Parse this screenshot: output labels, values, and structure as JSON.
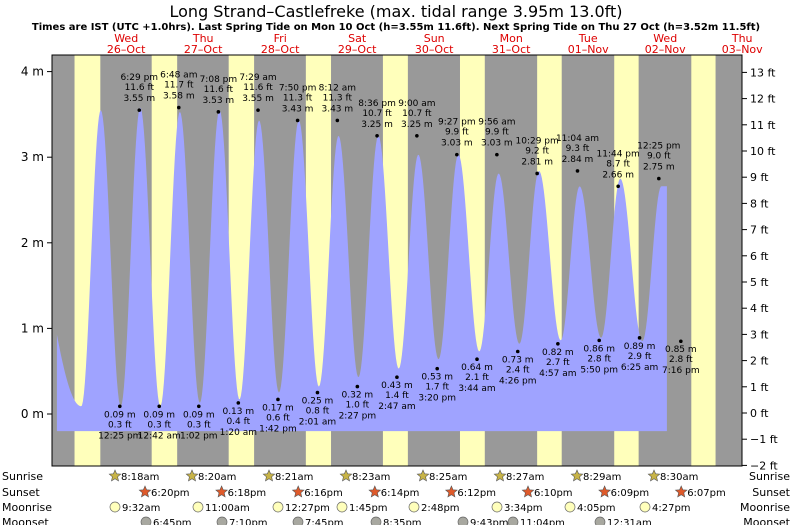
{
  "title": "Long Strand–Castlefreke (max. tidal range 3.95m 13.0ft)",
  "subtitle": "Times are IST (UTC +1.0hrs). Last Spring Tide on Mon 10 Oct (h=3.55m 11.6ft). Next Spring Tide on Thu 27 Oct (h=3.52m 11.5ft)",
  "colors": {
    "night": "#999999",
    "day": "#ffffbb",
    "water": "#9fa3ff",
    "date_text": "#dd0000",
    "sun_star": "#c8b447",
    "sunset_star": "#e05a2a",
    "moonrise": "#ffffbb",
    "moonset": "#a8a8a0"
  },
  "chart_data": {
    "type": "area",
    "ylabel_left_unit": "m",
    "ylabel_right_unit": "ft",
    "ylim_m": [
      -0.2,
      4.2
    ],
    "left_ticks": [
      "0 m",
      "1 m",
      "2 m",
      "3 m",
      "4 m"
    ],
    "right_ticks": [
      "−2 ft",
      "−1 ft",
      "0 ft",
      "1 ft",
      "2 ft",
      "3 ft",
      "4 ft",
      "5 ft",
      "6 ft",
      "7 ft",
      "8 ft",
      "9 ft",
      "10 ft",
      "11 ft",
      "12 ft",
      "13 ft"
    ],
    "days": [
      {
        "dow": "Wed",
        "date": "26–Oct"
      },
      {
        "dow": "Thu",
        "date": "27–Oct"
      },
      {
        "dow": "Fri",
        "date": "28–Oct"
      },
      {
        "dow": "Sat",
        "date": "29–Oct"
      },
      {
        "dow": "Sun",
        "date": "30–Oct"
      },
      {
        "dow": "Mon",
        "date": "31–Oct"
      },
      {
        "dow": "Tue",
        "date": "01–Nov"
      },
      {
        "dow": "Wed",
        "date": "02–Nov"
      },
      {
        "dow": "Thu",
        "date": "03–Nov"
      }
    ],
    "tides": [
      {
        "type": "high",
        "time": "",
        "m": 3.55,
        "ft": "",
        "t": -0.45,
        "label": false
      },
      {
        "type": "low",
        "time": "12:25 pm",
        "m": 0.09,
        "ft": "0.3",
        "t": 0.517
      },
      {
        "type": "high",
        "time": "6:29 pm",
        "m": 3.55,
        "ft": "11.6",
        "t": 0.77
      },
      {
        "type": "low",
        "time": "12:42 am",
        "m": 0.09,
        "ft": "0.3",
        "t": 1.029
      },
      {
        "type": "high",
        "time": "6:48 am",
        "m": 3.58,
        "ft": "11.7",
        "t": 1.283
      },
      {
        "type": "low",
        "time": "1:02 pm",
        "m": 0.09,
        "ft": "0.3",
        "t": 1.543
      },
      {
        "type": "high",
        "time": "7:08 pm",
        "m": 3.53,
        "ft": "11.6",
        "t": 1.797
      },
      {
        "type": "low",
        "time": "1:20 am",
        "m": 0.13,
        "ft": "0.4",
        "t": 2.056
      },
      {
        "type": "high",
        "time": "7:29 am",
        "m": 3.55,
        "ft": "11.6",
        "t": 2.312
      },
      {
        "type": "low",
        "time": "1:42 pm",
        "m": 0.17,
        "ft": "0.6",
        "t": 2.571
      },
      {
        "type": "high",
        "time": "7:50 pm",
        "m": 3.43,
        "ft": "11.3",
        "t": 2.826
      },
      {
        "type": "low",
        "time": "2:01 am",
        "m": 0.25,
        "ft": "0.8",
        "t": 3.084
      },
      {
        "type": "high",
        "time": "8:12 am",
        "m": 3.43,
        "ft": "11.3",
        "t": 3.342
      },
      {
        "type": "low",
        "time": "2:27 pm",
        "m": 0.32,
        "ft": "1.0",
        "t": 3.602
      },
      {
        "type": "high",
        "time": "8:36 pm",
        "m": 3.25,
        "ft": "10.7",
        "t": 3.858
      },
      {
        "type": "low",
        "time": "2:47 am",
        "m": 0.43,
        "ft": "1.4",
        "t": 4.116
      },
      {
        "type": "high",
        "time": "9:00 am",
        "m": 3.25,
        "ft": "10.7",
        "t": 4.375
      },
      {
        "type": "low",
        "time": "3:20 pm",
        "m": 0.53,
        "ft": "1.7",
        "t": 4.639
      },
      {
        "type": "high",
        "time": "9:27 pm",
        "m": 3.03,
        "ft": "9.9",
        "t": 4.894
      },
      {
        "type": "low",
        "time": "3:44 am",
        "m": 0.64,
        "ft": "2.1",
        "t": 5.156
      },
      {
        "type": "high",
        "time": "9:56 am",
        "m": 3.03,
        "ft": "9.9",
        "t": 5.414
      },
      {
        "type": "low",
        "time": "4:26 pm",
        "m": 0.73,
        "ft": "2.4",
        "t": 5.685
      },
      {
        "type": "high",
        "time": "10:29 pm",
        "m": 2.81,
        "ft": "9.2",
        "t": 5.937
      },
      {
        "type": "low",
        "time": "4:57 am",
        "m": 0.82,
        "ft": "2.7",
        "t": 6.206
      },
      {
        "type": "high",
        "time": "11:04 am",
        "m": 2.84,
        "ft": "9.3",
        "t": 6.461
      },
      {
        "type": "low",
        "time": "5:50 pm",
        "m": 0.86,
        "ft": "2.8",
        "t": 6.743
      },
      {
        "type": "high",
        "time": "11:44 pm",
        "m": 2.66,
        "ft": "8.7",
        "t": 6.989
      },
      {
        "type": "low",
        "time": "6:25 am",
        "m": 0.89,
        "ft": "2.9",
        "t": 7.267
      },
      {
        "type": "high",
        "time": "12:25 pm",
        "m": 2.75,
        "ft": "9.0",
        "t": 7.517
      },
      {
        "type": "low",
        "time": "7:16 pm",
        "m": 0.85,
        "ft": "2.8",
        "t": 7.803
      },
      {
        "type": "high",
        "time": "",
        "m": 2.66,
        "ft": "",
        "t": 8.05,
        "label": false
      }
    ]
  },
  "rows": {
    "labels": [
      "Sunrise",
      "Sunset",
      "Moonrise",
      "Moonset"
    ],
    "sunrise": [
      "8:18am",
      "8:20am",
      "8:21am",
      "8:23am",
      "8:25am",
      "8:27am",
      "8:29am",
      "8:30am"
    ],
    "sunset": [
      "6:20pm",
      "6:18pm",
      "6:16pm",
      "6:14pm",
      "6:12pm",
      "6:10pm",
      "6:09pm",
      "6:07pm"
    ],
    "moonrise": [
      "9:32am",
      "11:00am",
      "12:27pm",
      "1:45pm",
      "2:48pm",
      "3:34pm",
      "4:05pm",
      "4:27pm"
    ],
    "moonset": [
      "6:45pm",
      "7:10pm",
      "7:45pm",
      "8:35pm",
      "9:43pm",
      "11:04pm",
      "12:31am"
    ]
  }
}
